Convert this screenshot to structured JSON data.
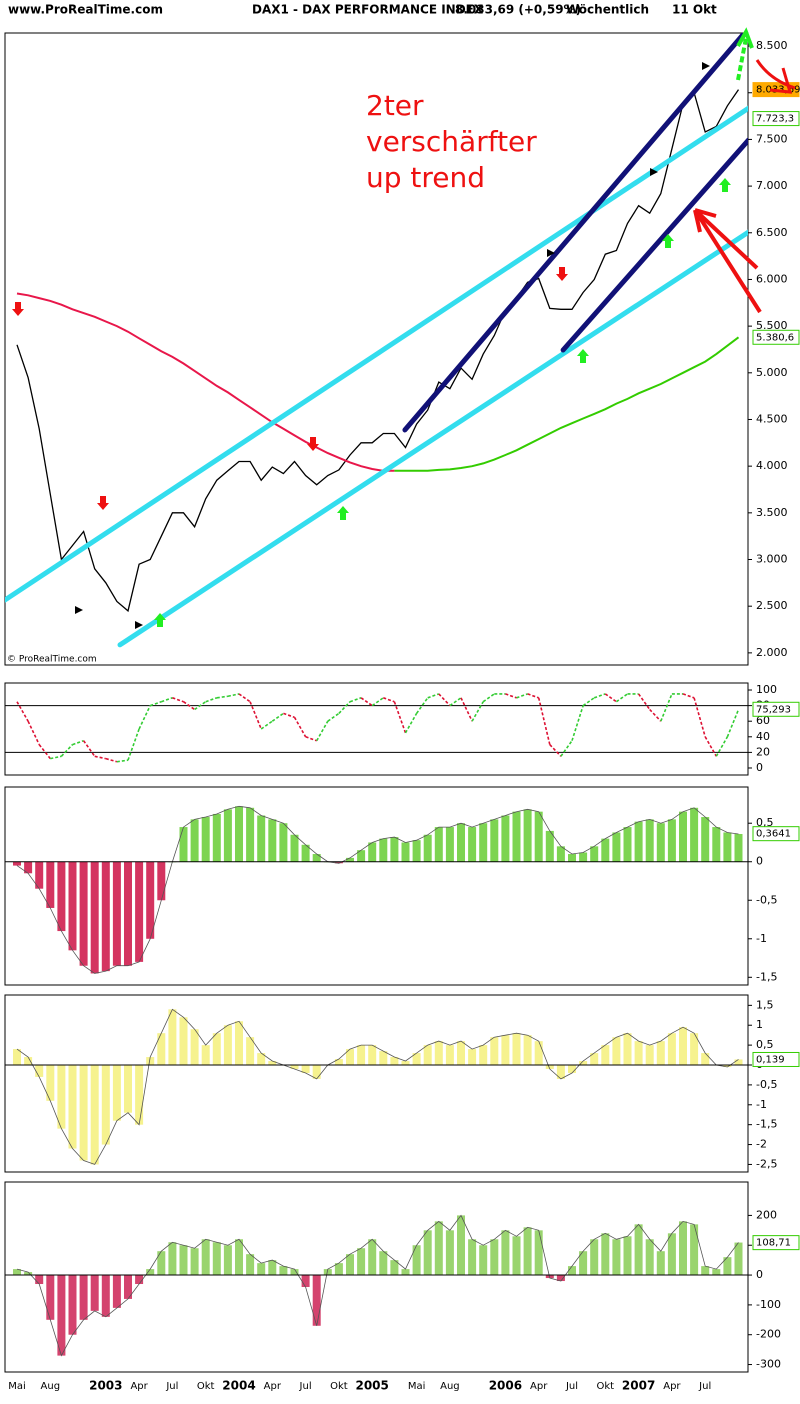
{
  "header": {
    "site": "www.ProRealTime.com",
    "symbol": "DAX1 - DAX PERFORMANCE INDEX",
    "quote": "8.033,69 (+0,59%)",
    "period": "Wöchentlich",
    "date": "11 Okt"
  },
  "chart_data": [
    {
      "type": "line",
      "annotation": [
        "2ter",
        "verschärfter",
        "up trend"
      ],
      "copyright": "© ProRealTime.com",
      "ylim": [
        1870,
        8640
      ],
      "yticks": [
        {
          "value": 2000,
          "label": "2.000"
        },
        {
          "value": 2500,
          "label": "2.500"
        },
        {
          "value": 3000,
          "label": "3.000"
        },
        {
          "value": 3500,
          "label": "3.500"
        },
        {
          "value": 4000,
          "label": "4.000"
        },
        {
          "value": 4500,
          "label": "4.500"
        },
        {
          "value": 5000,
          "label": "5.000"
        },
        {
          "value": 5500,
          "label": "5.500"
        },
        {
          "value": 6000,
          "label": "6.000"
        },
        {
          "value": 6500,
          "label": "6.500"
        },
        {
          "value": 7000,
          "label": "7.000"
        },
        {
          "value": 7500,
          "label": "7.500"
        },
        {
          "value": 8000,
          "label": "8.000"
        },
        {
          "value": 8500,
          "label": "8.500"
        }
      ],
      "series": [
        {
          "color": "#000000",
          "values": [
            5300,
            4950,
            4400,
            3700,
            3000,
            3150,
            3300,
            2900,
            2750,
            2550,
            2450,
            2950,
            3000,
            3250,
            3500,
            3500,
            3350,
            3650,
            3850,
            3950,
            4050,
            4050,
            3850,
            3990,
            3920,
            4050,
            3900,
            3800,
            3900,
            3960,
            4120,
            4250,
            4250,
            4350,
            4350,
            4200,
            4450,
            4600,
            4900,
            4830,
            5050,
            4930,
            5200,
            5400,
            5670,
            5800,
            5970,
            6010,
            5690,
            5680,
            5680,
            5860,
            6000,
            6270,
            6310,
            6600,
            6790,
            6710,
            6920,
            7400,
            7880,
            8000,
            7580,
            7640,
            7860,
            8034
          ]
        },
        {
          "color": "#e8174a",
          "values": [
            5850,
            5830,
            5800,
            5770,
            5730,
            5680,
            5640,
            5600,
            5550,
            5500,
            5440,
            5370,
            5300,
            5230,
            5170,
            5100,
            5020,
            4940,
            4860,
            4790,
            4710,
            4630,
            4550,
            4470,
            4400,
            4330,
            4260,
            4200,
            4140,
            4090,
            4040,
            4000,
            3970,
            3950,
            3950,
            null,
            null,
            null,
            null,
            null,
            null,
            null,
            null,
            null,
            null,
            null,
            null,
            null,
            null,
            null,
            null,
            null,
            null,
            null,
            null,
            null,
            null,
            null,
            null,
            null,
            null,
            null,
            null,
            null,
            null,
            null
          ]
        },
        {
          "color": "#33cc00",
          "values": [
            null,
            null,
            null,
            null,
            null,
            null,
            null,
            null,
            null,
            null,
            null,
            null,
            null,
            null,
            null,
            null,
            null,
            null,
            null,
            null,
            null,
            null,
            null,
            null,
            null,
            null,
            null,
            null,
            null,
            null,
            null,
            null,
            null,
            null,
            3950,
            3950,
            3950,
            3950,
            3960,
            3965,
            3980,
            4000,
            4030,
            4070,
            4120,
            4170,
            4230,
            4290,
            4350,
            4410,
            4460,
            4510,
            4560,
            4610,
            4670,
            4720,
            4780,
            4830,
            4880,
            4940,
            5000,
            5060,
            5120,
            5200,
            5290,
            5380
          ]
        }
      ],
      "trend_lines": [
        {
          "color": "#33ddee",
          "start": [
            -1.08,
            2567
          ],
          "end": [
            65.9,
            7835
          ]
        },
        {
          "color": "#33ddee",
          "start": [
            9.28,
            2086
          ],
          "end": [
            65.9,
            6508
          ]
        },
        {
          "color": "#111177",
          "start": [
            34.95,
            4388
          ],
          "end": [
            65.6,
            8649
          ]
        },
        {
          "color": "#111177",
          "start": [
            49.2,
            5244
          ],
          "end": [
            65.9,
            7493
          ]
        }
      ],
      "last_labels": [
        {
          "value": 8033.69,
          "label": "8.033,69",
          "color": "#ffaa00"
        },
        {
          "value": 7723.3,
          "label": "7.723,3",
          "color": "#33cc00"
        },
        {
          "value": 5380.6,
          "label": "5.380,6",
          "color": "#33cc00"
        }
      ]
    },
    {
      "type": "line",
      "ylim": [
        -9,
        109
      ],
      "yticks": [
        0,
        20,
        40,
        60,
        80,
        100
      ],
      "hlines": [
        20,
        80
      ],
      "series": [
        {
          "color": "#33cc33",
          "falling_color": "#dd1133",
          "values": [
            85,
            60,
            30,
            12,
            15,
            30,
            35,
            15,
            12,
            8,
            10,
            50,
            80,
            85,
            90,
            85,
            75,
            85,
            90,
            92,
            95,
            85,
            50,
            60,
            70,
            65,
            40,
            35,
            60,
            70,
            85,
            90,
            80,
            90,
            85,
            45,
            70,
            90,
            95,
            80,
            90,
            60,
            85,
            95,
            95,
            90,
            95,
            90,
            30,
            15,
            35,
            80,
            90,
            95,
            85,
            95,
            95,
            75,
            60,
            95,
            95,
            90,
            40,
            15,
            40,
            75
          ]
        }
      ],
      "last_labels": [
        {
          "value": 75.293,
          "label": "75,293",
          "color": "#33cc00"
        }
      ]
    },
    {
      "type": "bar",
      "ylim": [
        -1.6,
        0.97
      ],
      "yticks": [
        {
          "value": 0.5,
          "label": "0,5"
        },
        0,
        {
          "value": -0.5,
          "label": "-0,5"
        },
        -1,
        {
          "value": -1.5,
          "label": "-1,5"
        }
      ],
      "color": "#66cc33",
      "negative_color": "#cc1144",
      "values": [
        -0.05,
        -0.15,
        -0.35,
        -0.6,
        -0.9,
        -1.15,
        -1.35,
        -1.45,
        -1.42,
        -1.35,
        -1.35,
        -1.3,
        -1.0,
        -0.5,
        0.0,
        0.45,
        0.55,
        0.58,
        0.62,
        0.68,
        0.72,
        0.7,
        0.6,
        0.55,
        0.5,
        0.35,
        0.22,
        0.1,
        0.0,
        -0.02,
        0.05,
        0.15,
        0.25,
        0.3,
        0.32,
        0.25,
        0.28,
        0.35,
        0.45,
        0.45,
        0.5,
        0.45,
        0.5,
        0.55,
        0.6,
        0.65,
        0.68,
        0.65,
        0.4,
        0.2,
        0.1,
        0.12,
        0.2,
        0.3,
        0.38,
        0.45,
        0.52,
        0.55,
        0.5,
        0.55,
        0.65,
        0.7,
        0.58,
        0.45,
        0.38,
        0.36
      ],
      "last_labels": [
        {
          "value": 0.3641,
          "label": "0,3641",
          "color": "#33cc00"
        }
      ]
    },
    {
      "type": "bar",
      "ylim": [
        -2.69,
        1.76
      ],
      "yticks": [
        {
          "value": 1.5,
          "label": "1,5"
        },
        1,
        {
          "value": 0.5,
          "label": "0,5"
        },
        0,
        {
          "value": -0.5,
          "label": "-0,5"
        },
        -1,
        {
          "value": -1.5,
          "label": "-1,5"
        },
        -2,
        {
          "value": -2.5,
          "label": "-2,5"
        }
      ],
      "color": "#f5f07a",
      "negative_color": "#f5f07a",
      "values": [
        0.4,
        0.2,
        -0.3,
        -0.9,
        -1.6,
        -2.1,
        -2.4,
        -2.5,
        -2.0,
        -1.4,
        -1.2,
        -1.5,
        0.2,
        0.8,
        1.4,
        1.2,
        0.9,
        0.5,
        0.8,
        1.0,
        1.1,
        0.7,
        0.3,
        0.1,
        0.0,
        -0.1,
        -0.2,
        -0.35,
        0.0,
        0.15,
        0.4,
        0.5,
        0.5,
        0.35,
        0.2,
        0.1,
        0.3,
        0.5,
        0.6,
        0.5,
        0.6,
        0.4,
        0.5,
        0.7,
        0.75,
        0.8,
        0.75,
        0.6,
        -0.1,
        -0.35,
        -0.2,
        0.1,
        0.3,
        0.5,
        0.7,
        0.8,
        0.6,
        0.5,
        0.6,
        0.8,
        0.95,
        0.8,
        0.3,
        0.0,
        -0.05,
        0.14
      ],
      "last_labels": [
        {
          "value": 0.139,
          "label": "0,139",
          "color": "#33cc00"
        }
      ]
    },
    {
      "type": "bar",
      "ylim": [
        -325,
        312
      ],
      "yticks": [
        200,
        100,
        0,
        -100,
        -200,
        -300
      ],
      "color": "#88cc55",
      "negative_color": "#cc2255",
      "values": [
        20,
        10,
        -30,
        -150,
        -270,
        -200,
        -150,
        -120,
        -140,
        -110,
        -80,
        -30,
        20,
        80,
        110,
        100,
        90,
        120,
        110,
        100,
        120,
        70,
        40,
        50,
        30,
        20,
        -40,
        -170,
        20,
        40,
        70,
        90,
        120,
        80,
        50,
        20,
        100,
        150,
        180,
        150,
        200,
        120,
        100,
        120,
        150,
        130,
        160,
        150,
        -10,
        -20,
        30,
        80,
        120,
        140,
        120,
        130,
        170,
        120,
        80,
        140,
        180,
        170,
        30,
        20,
        60,
        109
      ],
      "categories": [
        "Mai",
        null,
        null,
        "Aug",
        null,
        null,
        null,
        null,
        "2003",
        null,
        null,
        "Apr",
        null,
        null,
        "Jul",
        null,
        null,
        "Okt",
        null,
        null,
        "2004",
        null,
        null,
        "Apr",
        null,
        null,
        "Jul",
        null,
        null,
        "Okt",
        null,
        null,
        "2005",
        null,
        null,
        null,
        "Mai",
        null,
        null,
        "Aug",
        null,
        null,
        null,
        null,
        "2006",
        null,
        null,
        "Apr",
        null,
        null,
        "Jul",
        null,
        null,
        "Okt",
        null,
        null,
        "2007",
        null,
        null,
        "Apr",
        null,
        null,
        "Jul",
        null,
        null,
        null
      ],
      "last_labels": [
        {
          "value": 108.71,
          "label": "108,71",
          "color": "#33cc00"
        }
      ]
    }
  ]
}
